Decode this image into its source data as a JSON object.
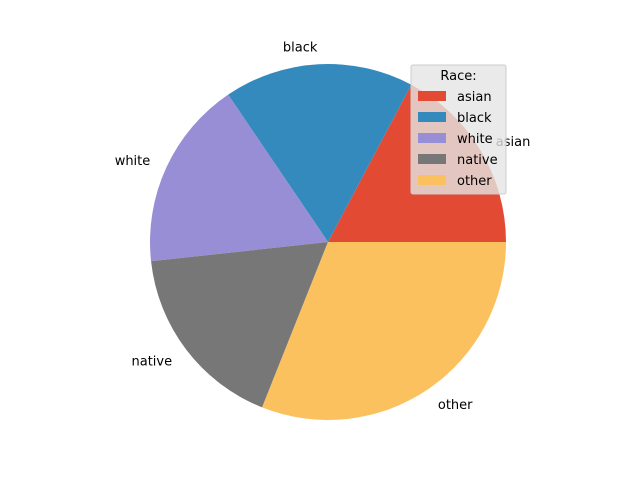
{
  "chart_data": {
    "type": "pie",
    "title": "",
    "categories": [
      "asian",
      "black",
      "white",
      "native",
      "other"
    ],
    "values": [
      5,
      5,
      5,
      5,
      9
    ],
    "colors": [
      "#E24A33",
      "#348ABD",
      "#988ED5",
      "#777777",
      "#FBC15E"
    ],
    "start_angle_deg": 0,
    "direction": "counterclockwise",
    "legend": {
      "title": "Race:",
      "placement": "upper-right",
      "entries": [
        "asian",
        "black",
        "white",
        "native",
        "other"
      ]
    }
  }
}
